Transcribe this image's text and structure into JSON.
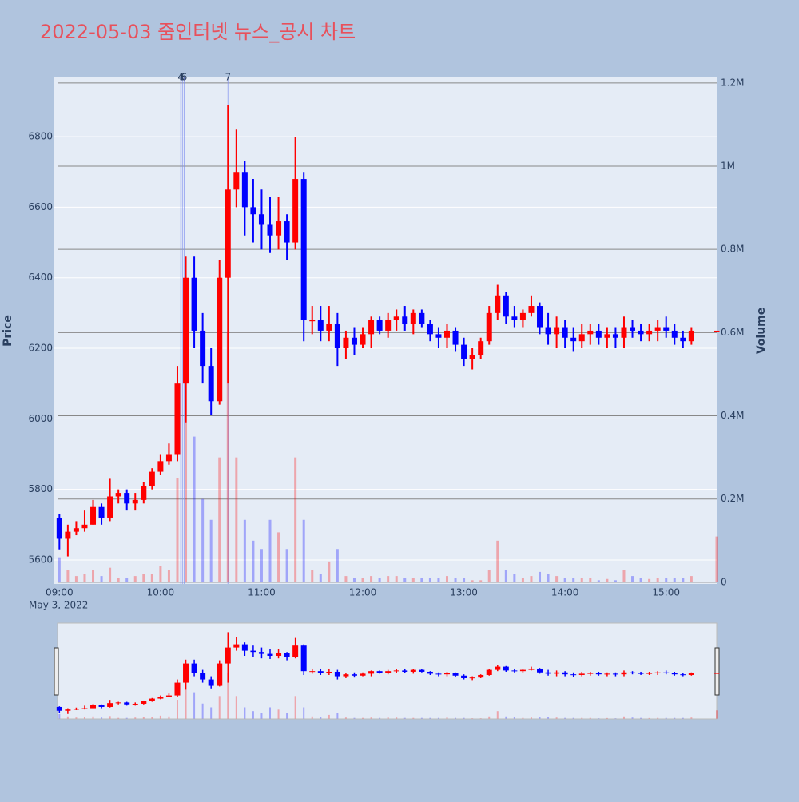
{
  "chart_data": {
    "type": "candlestick",
    "title": "2022-05-03 줌인터넷 뉴스_공시 차트",
    "y_title": "Price",
    "y2_title": "Volume",
    "x_sublabel": "May 3, 2022",
    "up_color": "#ff0000",
    "down_color": "#0000ff",
    "x": [
      "09:00",
      "09:05",
      "09:10",
      "09:15",
      "09:20",
      "09:25",
      "09:30",
      "09:35",
      "09:40",
      "09:45",
      "09:50",
      "09:55",
      "10:00",
      "10:05",
      "10:10",
      "10:15",
      "10:20",
      "10:25",
      "10:30",
      "10:35",
      "10:40",
      "10:45",
      "10:50",
      "10:55",
      "11:00",
      "11:05",
      "11:10",
      "11:15",
      "11:20",
      "11:25",
      "11:30",
      "11:35",
      "11:40",
      "11:45",
      "11:50",
      "11:55",
      "12:00",
      "12:05",
      "12:10",
      "12:15",
      "12:20",
      "12:25",
      "12:30",
      "12:35",
      "12:40",
      "12:45",
      "12:50",
      "12:55",
      "13:00",
      "13:05",
      "13:10",
      "13:15",
      "13:20",
      "13:25",
      "13:30",
      "13:35",
      "13:40",
      "13:45",
      "13:50",
      "13:55",
      "14:00",
      "14:05",
      "14:10",
      "14:15",
      "14:20",
      "14:25",
      "14:30",
      "14:35",
      "14:40",
      "14:45",
      "14:50",
      "14:55",
      "15:00",
      "15:05",
      "15:10",
      "15:15",
      "15:30"
    ],
    "open": [
      5720,
      5660,
      5680,
      5690,
      5700,
      5750,
      5720,
      5780,
      5790,
      5760,
      5770,
      5810,
      5850,
      5880,
      5900,
      6100,
      6400,
      6250,
      6150,
      6050,
      6400,
      6650,
      6700,
      6600,
      6580,
      6550,
      6520,
      6560,
      6500,
      6680,
      6280,
      6280,
      6250,
      6270,
      6200,
      6230,
      6210,
      6240,
      6280,
      6250,
      6280,
      6290,
      6270,
      6300,
      6270,
      6240,
      6230,
      6250,
      6210,
      6170,
      6180,
      6220,
      6300,
      6350,
      6290,
      6280,
      6300,
      6320,
      6260,
      6240,
      6260,
      6230,
      6220,
      6240,
      6250,
      6230,
      6240,
      6230,
      6260,
      6250,
      6240,
      6250,
      6260,
      6250,
      6230,
      6220,
      6250
    ],
    "high": [
      5730,
      5700,
      5710,
      5740,
      5770,
      5760,
      5830,
      5800,
      5800,
      5790,
      5820,
      5860,
      5900,
      5930,
      6150,
      6460,
      6460,
      6300,
      6200,
      6450,
      6890,
      6820,
      6730,
      6680,
      6650,
      6630,
      6630,
      6580,
      6800,
      6700,
      6320,
      6320,
      6320,
      6300,
      6250,
      6260,
      6260,
      6290,
      6290,
      6300,
      6310,
      6320,
      6310,
      6310,
      6280,
      6260,
      6270,
      6260,
      6230,
      6200,
      6230,
      6320,
      6380,
      6360,
      6320,
      6310,
      6350,
      6330,
      6300,
      6290,
      6280,
      6260,
      6270,
      6270,
      6270,
      6260,
      6260,
      6290,
      6280,
      6270,
      6270,
      6280,
      6290,
      6270,
      6250,
      6260,
      6250
    ],
    "low": [
      5630,
      5610,
      5670,
      5680,
      5700,
      5700,
      5710,
      5760,
      5740,
      5740,
      5760,
      5800,
      5840,
      5870,
      5880,
      5990,
      6200,
      6100,
      6010,
      6040,
      6100,
      6600,
      6520,
      6500,
      6480,
      6470,
      6480,
      6450,
      6480,
      6220,
      6240,
      6220,
      6220,
      6150,
      6170,
      6180,
      6200,
      6200,
      6240,
      6230,
      6250,
      6250,
      6240,
      6260,
      6220,
      6200,
      6200,
      6190,
      6150,
      6140,
      6170,
      6210,
      6280,
      6270,
      6260,
      6260,
      6290,
      6240,
      6210,
      6200,
      6200,
      6190,
      6200,
      6210,
      6210,
      6200,
      6200,
      6200,
      6230,
      6220,
      6220,
      6220,
      6230,
      6210,
      6200,
      6210,
      6250
    ],
    "close": [
      5660,
      5680,
      5690,
      5700,
      5750,
      5720,
      5780,
      5790,
      5760,
      5770,
      5810,
      5850,
      5880,
      5900,
      6100,
      6400,
      6250,
      6150,
      6050,
      6400,
      6650,
      6700,
      6600,
      6580,
      6550,
      6520,
      6560,
      6500,
      6680,
      6280,
      6280,
      6250,
      6270,
      6200,
      6230,
      6210,
      6240,
      6280,
      6250,
      6280,
      6290,
      6270,
      6300,
      6270,
      6240,
      6230,
      6250,
      6210,
      6170,
      6180,
      6220,
      6300,
      6350,
      6290,
      6280,
      6300,
      6320,
      6260,
      6240,
      6260,
      6230,
      6220,
      6240,
      6250,
      6230,
      6240,
      6230,
      6260,
      6250,
      6240,
      6250,
      6260,
      6250,
      6230,
      6220,
      6250,
      6250
    ],
    "volume": [
      60000,
      30000,
      15000,
      20000,
      30000,
      15000,
      35000,
      10000,
      10000,
      15000,
      20000,
      20000,
      40000,
      30000,
      250000,
      700000,
      350000,
      200000,
      150000,
      300000,
      600000,
      300000,
      150000,
      100000,
      80000,
      150000,
      120000,
      80000,
      300000,
      150000,
      30000,
      20000,
      50000,
      80000,
      15000,
      10000,
      10000,
      15000,
      10000,
      15000,
      15000,
      10000,
      10000,
      10000,
      10000,
      10000,
      15000,
      10000,
      10000,
      5000,
      5000,
      30000,
      100000,
      30000,
      20000,
      10000,
      15000,
      25000,
      20000,
      15000,
      10000,
      10000,
      10000,
      10000,
      5000,
      8000,
      5000,
      30000,
      15000,
      10000,
      8000,
      10000,
      10000,
      10000,
      10000,
      15000,
      110000
    ],
    "xlim": [
      "08:57",
      "15:30"
    ],
    "xticks": [
      "09:00",
      "10:00",
      "11:00",
      "12:00",
      "13:00",
      "14:00",
      "15:00"
    ],
    "ylim": [
      5532,
      6970
    ],
    "yticks": [
      5600,
      5800,
      6000,
      6200,
      6400,
      6600,
      6800
    ],
    "y2lim": [
      -4000,
      1215000
    ],
    "y2ticks": [
      0,
      {
        "value": 200000,
        "label": "0.2M"
      },
      {
        "value": 400000,
        "label": "0.4M"
      },
      {
        "value": 600000,
        "label": "0.6M"
      },
      {
        "value": 800000,
        "label": "0.8M"
      },
      {
        "value": 1000000,
        "label": "1M"
      },
      {
        "value": 1200000,
        "label": "1.2M"
      }
    ],
    "annotations": [
      {
        "x": "10:12",
        "text": "4"
      },
      {
        "x": "10:13",
        "text": "5"
      },
      {
        "x": "10:14",
        "text": "6"
      },
      {
        "x": "10:40",
        "text": "7"
      }
    ]
  }
}
